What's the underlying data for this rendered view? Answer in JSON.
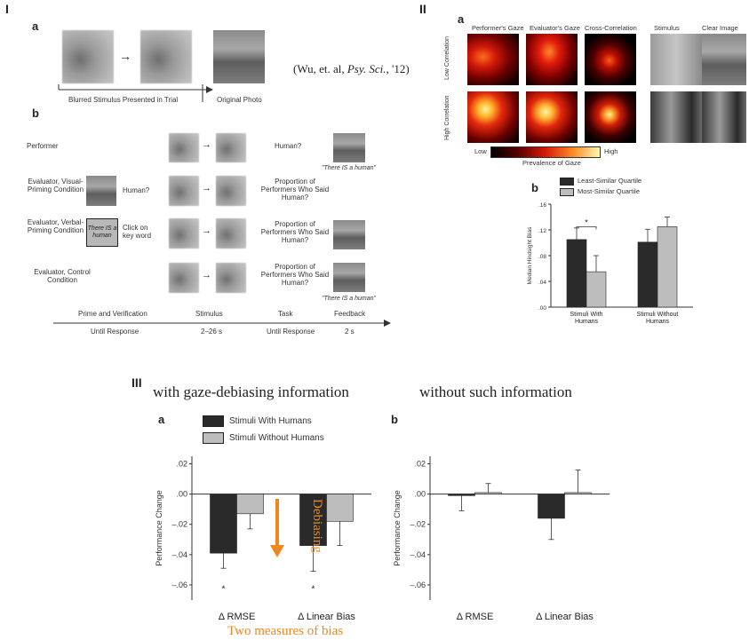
{
  "panel1": {
    "label": "I",
    "sub_a": "a",
    "sub_b": "b",
    "blurred_caption": "Blurred Stimulus Presented in Trial",
    "original_caption": "Original Photo",
    "citation_pre": "(Wu, et. al, ",
    "citation_journal": "Psy. Sci.",
    "citation_post": ", '12)",
    "rows": [
      {
        "name": "Performer",
        "task": "Human?",
        "feedback_quote": "\"There IS a human\""
      },
      {
        "name": "Evaluator, Visual-Priming Condition",
        "prime_text": "Human?",
        "task": "Proportion of Performers Who Said Human?"
      },
      {
        "name": "Evaluator, Verbal-Priming Condition",
        "prime_box": "There IS a human",
        "prime_text": "Click on key word",
        "task": "Proportion of Performers Who Said Human?"
      },
      {
        "name": "Evaluator, Control Condition",
        "task": "Proportion of Performers Who Said Human?",
        "feedback_quote": "\"There IS a human\""
      }
    ],
    "timeline": [
      {
        "phase": "Prime and Verification",
        "duration": "Until Response"
      },
      {
        "phase": "Stimulus",
        "duration": "2–26 s"
      },
      {
        "phase": "Task",
        "duration": "Until Response"
      },
      {
        "phase": "Feedback",
        "duration": "2 s"
      }
    ]
  },
  "panel2": {
    "label": "II",
    "sub_a": "a",
    "sub_b": "b",
    "columns": [
      "Performer's Gaze",
      "Evaluator's Gaze",
      "Cross-Correlation",
      "Stimulus",
      "Clear Image"
    ],
    "rows": [
      "Low Correlation",
      "High Correlation"
    ],
    "colorbar_low": "Low",
    "colorbar_high": "High",
    "colorbar_caption": "Prevalence of Gaze",
    "colors": {
      "dark_bar": "#2a2a2a",
      "light_bar": "#bdbdbd"
    }
  },
  "panel3": {
    "label": "III",
    "heading_left": "with gaze-debiasing information",
    "heading_right": "without such information",
    "sub_a": "a",
    "sub_b": "b",
    "debias_text": "Debiasing",
    "bias_caption": "Two measures of bias",
    "accent": "#f0861e"
  },
  "chart_data": [
    {
      "type": "bar",
      "id": "II-b",
      "categories": [
        "Stimuli With Humans",
        "Stimuli Without Humans"
      ],
      "series": [
        {
          "name": "Least-Similar Quartile",
          "values": [
            0.105,
            0.101
          ],
          "err": [
            0.018,
            0.02
          ]
        },
        {
          "name": "Most-Similar Quartile",
          "values": [
            0.055,
            0.125
          ],
          "err": [
            0.025,
            0.015
          ]
        }
      ],
      "ylabel": "Median Hindsight Bias",
      "yticks": [
        ".00",
        ".04",
        ".08",
        ".12",
        ".16"
      ],
      "ylim": [
        0,
        0.16
      ],
      "annotation": "*"
    },
    {
      "type": "bar",
      "id": "III-a",
      "categories": [
        "Δ RMSE",
        "Δ Linear Bias"
      ],
      "series": [
        {
          "name": "Stimuli With Humans",
          "values": [
            -0.039,
            -0.034
          ],
          "err": [
            0.01,
            0.017
          ]
        },
        {
          "name": "Stimuli Without Humans",
          "values": [
            -0.013,
            -0.018
          ],
          "err": [
            0.01,
            0.016
          ]
        }
      ],
      "ylabel": "Performance Change",
      "yticks": [
        "–.06",
        "–.04",
        "–.02",
        ".00",
        ".02"
      ],
      "ylim": [
        -0.07,
        0.025
      ],
      "annotations": [
        "*",
        "*"
      ]
    },
    {
      "type": "bar",
      "id": "III-b",
      "categories": [
        "Δ RMSE",
        "Δ Linear Bias"
      ],
      "series": [
        {
          "values": [
            -0.001,
            -0.016
          ],
          "err": [
            0.01,
            0.014
          ]
        },
        {
          "values": [
            0.001,
            0.001
          ],
          "err": [
            0.006,
            0.015
          ]
        }
      ],
      "ylabel": "Performance Change",
      "yticks": [
        "–.06",
        "–.04",
        "–.02",
        ".00",
        ".02"
      ],
      "ylim": [
        -0.07,
        0.025
      ]
    }
  ]
}
